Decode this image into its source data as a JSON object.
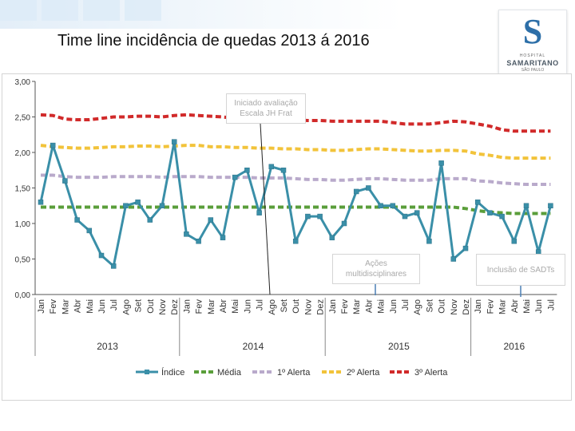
{
  "slide": {
    "title": "Time line incidência de quedas 2013 á 2016",
    "logo": {
      "letter": "S",
      "top_text": "HOSPITAL",
      "name": "SAMARITANO",
      "sub_text": "SÃO PAULO"
    }
  },
  "annotations": [
    {
      "line1": "Iniciado avaliação",
      "line2": "Escala JH Frat"
    },
    {
      "line1": "Ações",
      "line2": "multidisciplinares"
    },
    {
      "line1": "Inclusão de SADTs",
      "line2": ""
    }
  ],
  "colors": {
    "indice": "#3a8fa8",
    "media": "#5a9e3a",
    "alerta1": "#b9aacb",
    "alerta2": "#f2c33a",
    "alerta3": "#d12a2a",
    "axis": "#555555",
    "grid_divider": "#888888"
  },
  "chart_data": {
    "type": "line",
    "title": "Time line incidência de quedas 2013 á 2016",
    "ylim": [
      0,
      3.0
    ],
    "yticks": [
      "0,00",
      "0,50",
      "1,00",
      "1,50",
      "2,00",
      "2,50",
      "3,00"
    ],
    "ytick_values": [
      0,
      0.5,
      1.0,
      1.5,
      2.0,
      2.5,
      3.0
    ],
    "categories": [
      "Jan",
      "Fev",
      "Mar",
      "Abr",
      "Mai",
      "Jun",
      "Jul",
      "Ago",
      "Set",
      "Out",
      "Nov",
      "Dez",
      "Jan",
      "Fev",
      "Mar",
      "Abr",
      "Mai",
      "Jun",
      "Jul",
      "Ago",
      "Set",
      "Out",
      "Nov",
      "Dez",
      "Jan",
      "Fev",
      "Mar",
      "Abr",
      "Mai",
      "Jun",
      "Jul",
      "Ago",
      "Set",
      "Out",
      "Nov",
      "Dez",
      "Jan",
      "Fev",
      "Mar",
      "Abr",
      "Mai",
      "Jun",
      "Jul"
    ],
    "years": [
      {
        "label": "2013",
        "start": 0,
        "end": 11
      },
      {
        "label": "2014",
        "start": 12,
        "end": 23
      },
      {
        "label": "2015",
        "start": 24,
        "end": 35
      },
      {
        "label": "2016",
        "start": 36,
        "end": 42
      }
    ],
    "series": [
      {
        "name": "Índice",
        "key": "indice",
        "style": "solid-markers",
        "values": [
          1.3,
          2.1,
          1.6,
          1.05,
          0.9,
          0.55,
          0.4,
          1.25,
          1.3,
          1.05,
          1.25,
          2.15,
          0.85,
          0.75,
          1.05,
          0.8,
          1.65,
          1.75,
          1.15,
          1.8,
          1.75,
          0.75,
          1.1,
          1.1,
          0.8,
          1.0,
          1.45,
          1.5,
          1.25,
          1.25,
          1.1,
          1.15,
          0.75,
          1.85,
          0.5,
          0.65,
          1.3,
          1.15,
          1.1,
          0.75,
          1.25,
          0.6,
          1.25
        ]
      },
      {
        "name": "Média",
        "key": "media",
        "style": "dash",
        "values": [
          1.23,
          1.23,
          1.23,
          1.23,
          1.23,
          1.23,
          1.23,
          1.23,
          1.23,
          1.23,
          1.23,
          1.23,
          1.23,
          1.23,
          1.23,
          1.23,
          1.23,
          1.23,
          1.23,
          1.23,
          1.23,
          1.23,
          1.23,
          1.23,
          1.23,
          1.23,
          1.23,
          1.23,
          1.23,
          1.23,
          1.23,
          1.23,
          1.23,
          1.23,
          1.23,
          1.21,
          1.18,
          1.16,
          1.15,
          1.14,
          1.14,
          1.14,
          1.14
        ]
      },
      {
        "name": "1º Alerta",
        "key": "alerta1",
        "style": "dash",
        "values": [
          1.68,
          1.68,
          1.66,
          1.65,
          1.65,
          1.65,
          1.66,
          1.66,
          1.66,
          1.66,
          1.65,
          1.66,
          1.66,
          1.66,
          1.65,
          1.65,
          1.65,
          1.65,
          1.64,
          1.64,
          1.64,
          1.63,
          1.62,
          1.62,
          1.61,
          1.61,
          1.62,
          1.63,
          1.63,
          1.62,
          1.61,
          1.61,
          1.61,
          1.63,
          1.63,
          1.63,
          1.6,
          1.59,
          1.57,
          1.56,
          1.55,
          1.55,
          1.55
        ]
      },
      {
        "name": "2º Alerta",
        "key": "alerta2",
        "style": "dash",
        "values": [
          2.1,
          2.08,
          2.07,
          2.06,
          2.06,
          2.07,
          2.08,
          2.08,
          2.09,
          2.09,
          2.08,
          2.09,
          2.1,
          2.1,
          2.08,
          2.08,
          2.07,
          2.07,
          2.06,
          2.06,
          2.05,
          2.05,
          2.04,
          2.04,
          2.03,
          2.03,
          2.04,
          2.05,
          2.05,
          2.04,
          2.03,
          2.02,
          2.02,
          2.03,
          2.03,
          2.02,
          1.98,
          1.96,
          1.93,
          1.92,
          1.92,
          1.92,
          1.92
        ]
      },
      {
        "name": "3º Alerta",
        "key": "alerta3",
        "style": "dash",
        "values": [
          2.53,
          2.52,
          2.47,
          2.46,
          2.46,
          2.48,
          2.5,
          2.5,
          2.51,
          2.51,
          2.5,
          2.52,
          2.53,
          2.52,
          2.51,
          2.5,
          2.48,
          2.48,
          2.47,
          2.46,
          2.46,
          2.46,
          2.45,
          2.45,
          2.44,
          2.44,
          2.44,
          2.44,
          2.44,
          2.42,
          2.4,
          2.4,
          2.4,
          2.42,
          2.44,
          2.43,
          2.4,
          2.37,
          2.32,
          2.3,
          2.3,
          2.3,
          2.3
        ]
      }
    ]
  }
}
